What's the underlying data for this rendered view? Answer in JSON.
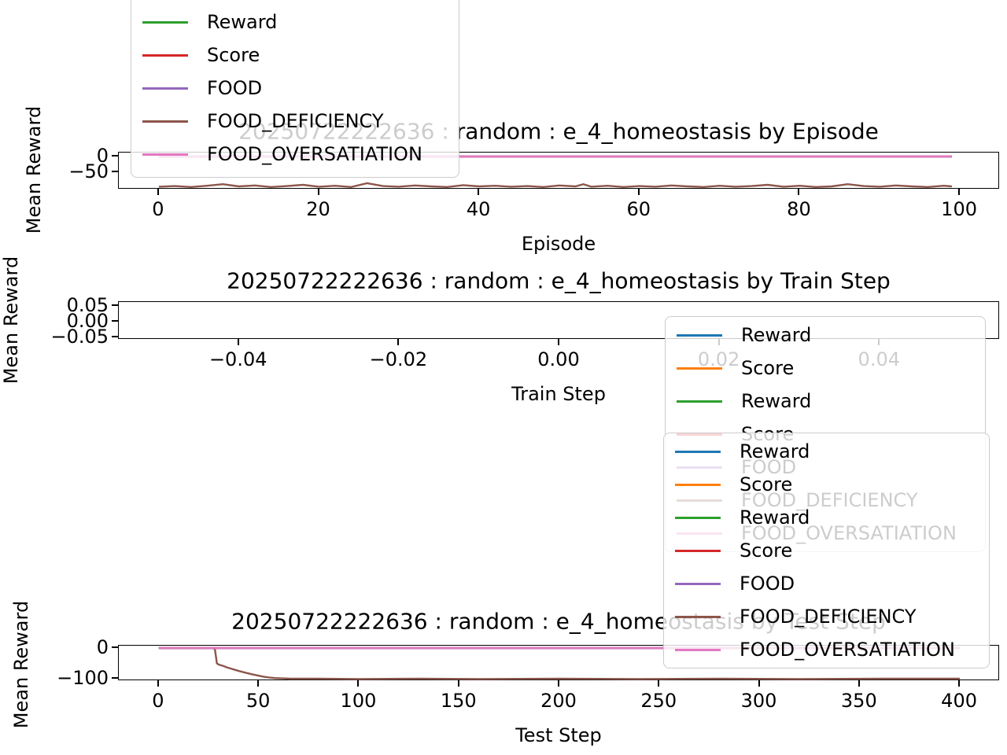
{
  "colors": {
    "blue": "#1f77b4",
    "orange": "#ff7f0e",
    "green": "#2ca02c",
    "red": "#d62728",
    "purple": "#9467bd",
    "brown": "#8c564b",
    "pink": "#e377c2"
  },
  "chart_data": [
    {
      "type": "line",
      "title": "20250722222636 : random : e_4_homeostasis by Episode",
      "xlabel": "Episode",
      "ylabel": "Mean Reward",
      "xlim": [
        -5,
        105
      ],
      "ylim": [
        -105,
        12.5
      ],
      "grid": false,
      "x_ticks": [
        {
          "v": 0,
          "label": "0"
        },
        {
          "v": 20,
          "label": "20"
        },
        {
          "v": 40,
          "label": "40"
        },
        {
          "v": 60,
          "label": "60"
        },
        {
          "v": 80,
          "label": "80"
        },
        {
          "v": 100,
          "label": "100"
        }
      ],
      "y_ticks": [
        {
          "v": 0,
          "label": "0"
        },
        {
          "v": -50,
          "label": "−50"
        }
      ],
      "legend": {
        "position": "upper-left",
        "entries": [
          {
            "label": "Reward",
            "color": "#2ca02c"
          },
          {
            "label": "Score",
            "color": "#d62728"
          },
          {
            "label": "FOOD",
            "color": "#9467bd"
          },
          {
            "label": "FOOD_DEFICIENCY",
            "color": "#8c564b"
          },
          {
            "label": "FOOD_OVERSATIATION",
            "color": "#e377c2"
          }
        ]
      },
      "series": [
        {
          "name": "Reward",
          "color": "#2ca02c",
          "points": [
            [
              0,
              0
            ],
            [
              99,
              0
            ]
          ]
        },
        {
          "name": "Score",
          "color": "#d62728",
          "points": [
            [
              0,
              0
            ],
            [
              99,
              0
            ]
          ]
        },
        {
          "name": "FOOD",
          "color": "#9467bd",
          "points": [
            [
              0,
              0
            ],
            [
              99,
              0
            ]
          ]
        },
        {
          "name": "FOOD_DEFICIENCY",
          "color": "#8c564b",
          "points": [
            [
              0,
              -96
            ],
            [
              2,
              -94
            ],
            [
              4,
              -97
            ],
            [
              6,
              -93
            ],
            [
              8,
              -88
            ],
            [
              10,
              -95
            ],
            [
              12,
              -92
            ],
            [
              14,
              -97
            ],
            [
              16,
              -94
            ],
            [
              18,
              -90
            ],
            [
              20,
              -96
            ],
            [
              22,
              -93
            ],
            [
              24,
              -97
            ],
            [
              26,
              -85
            ],
            [
              28,
              -94
            ],
            [
              30,
              -96
            ],
            [
              32,
              -92
            ],
            [
              34,
              -95
            ],
            [
              36,
              -97
            ],
            [
              38,
              -91
            ],
            [
              40,
              -95
            ],
            [
              42,
              -93
            ],
            [
              44,
              -96
            ],
            [
              46,
              -94
            ],
            [
              48,
              -97
            ],
            [
              50,
              -92
            ],
            [
              52,
              -95
            ],
            [
              53,
              -88
            ],
            [
              54,
              -96
            ],
            [
              56,
              -93
            ],
            [
              58,
              -97
            ],
            [
              60,
              -94
            ],
            [
              62,
              -96
            ],
            [
              64,
              -92
            ],
            [
              66,
              -95
            ],
            [
              68,
              -97
            ],
            [
              70,
              -93
            ],
            [
              72,
              -96
            ],
            [
              74,
              -94
            ],
            [
              76,
              -90
            ],
            [
              78,
              -96
            ],
            [
              80,
              -93
            ],
            [
              82,
              -97
            ],
            [
              84,
              -95
            ],
            [
              86,
              -88
            ],
            [
              88,
              -94
            ],
            [
              90,
              -96
            ],
            [
              92,
              -92
            ],
            [
              94,
              -95
            ],
            [
              96,
              -97
            ],
            [
              98,
              -93
            ],
            [
              99,
              -95
            ]
          ]
        },
        {
          "name": "FOOD_OVERSATIATION",
          "color": "#e377c2",
          "points": [
            [
              0,
              0
            ],
            [
              99,
              0
            ]
          ]
        }
      ]
    },
    {
      "type": "line",
      "title": "20250722222636 : random : e_4_homeostasis by Train Step",
      "xlabel": "Train Step",
      "ylabel": "Mean Reward",
      "xlim": [
        -0.055,
        0.055
      ],
      "ylim": [
        -0.0575,
        0.0625
      ],
      "grid": false,
      "x_ticks": [
        {
          "v": -0.04,
          "label": "−0.04"
        },
        {
          "v": -0.02,
          "label": "−0.02"
        },
        {
          "v": 0.0,
          "label": "0.00"
        },
        {
          "v": 0.02,
          "label": "0.02"
        },
        {
          "v": 0.04,
          "label": "0.04"
        }
      ],
      "y_ticks": [
        {
          "v": 0.05,
          "label": "0.05"
        },
        {
          "v": 0.0,
          "label": "0.00"
        },
        {
          "v": -0.05,
          "label": "−0.05"
        }
      ],
      "legend": {
        "position": "right",
        "entries": [
          {
            "label": "Reward",
            "color": "#1f77b4"
          },
          {
            "label": "Score",
            "color": "#ff7f0e"
          },
          {
            "label": "Reward",
            "color": "#2ca02c"
          },
          {
            "label": "Score",
            "color": "#d62728"
          },
          {
            "label": "FOOD",
            "color": "#9467bd"
          },
          {
            "label": "FOOD_DEFICIENCY",
            "color": "#8c564b"
          },
          {
            "label": "FOOD_OVERSATIATION",
            "color": "#e377c2"
          }
        ]
      },
      "series": []
    },
    {
      "type": "line",
      "title": "20250722222636 : random : e_4_homeostasis by Test Step",
      "xlabel": "Test Step",
      "ylabel": "Mean Reward",
      "xlim": [
        -20,
        420
      ],
      "ylim": [
        -107.7,
        7.7
      ],
      "grid": false,
      "x_ticks": [
        {
          "v": 0,
          "label": "0"
        },
        {
          "v": 50,
          "label": "50"
        },
        {
          "v": 100,
          "label": "100"
        },
        {
          "v": 150,
          "label": "150"
        },
        {
          "v": 200,
          "label": "200"
        },
        {
          "v": 250,
          "label": "250"
        },
        {
          "v": 300,
          "label": "300"
        },
        {
          "v": 350,
          "label": "350"
        },
        {
          "v": 400,
          "label": "400"
        }
      ],
      "y_ticks": [
        {
          "v": 0,
          "label": "0"
        },
        {
          "v": -100,
          "label": "−100"
        }
      ],
      "legend": {
        "position": "upper-right",
        "entries": [
          {
            "label": "Reward",
            "color": "#1f77b4"
          },
          {
            "label": "Score",
            "color": "#ff7f0e"
          },
          {
            "label": "Reward",
            "color": "#2ca02c"
          },
          {
            "label": "Score",
            "color": "#d62728"
          },
          {
            "label": "FOOD",
            "color": "#9467bd"
          },
          {
            "label": "FOOD_DEFICIENCY",
            "color": "#8c564b"
          },
          {
            "label": "FOOD_OVERSATIATION",
            "color": "#e377c2"
          }
        ]
      },
      "series": [
        {
          "name": "Reward",
          "color": "#1f77b4",
          "points": [
            [
              0,
              0
            ],
            [
              400,
              0
            ]
          ]
        },
        {
          "name": "Score",
          "color": "#ff7f0e",
          "points": [
            [
              0,
              0
            ],
            [
              400,
              0
            ]
          ]
        },
        {
          "name": "Reward",
          "color": "#2ca02c",
          "points": [
            [
              0,
              0
            ],
            [
              400,
              0
            ]
          ]
        },
        {
          "name": "Score",
          "color": "#d62728",
          "points": [
            [
              0,
              0
            ],
            [
              400,
              0
            ]
          ]
        },
        {
          "name": "FOOD",
          "color": "#9467bd",
          "points": [
            [
              0,
              0
            ],
            [
              400,
              0
            ]
          ]
        },
        {
          "name": "FOOD_DEFICIENCY",
          "color": "#8c564b",
          "points": [
            [
              0,
              0
            ],
            [
              27,
              0
            ],
            [
              28,
              -4
            ],
            [
              29,
              -50
            ],
            [
              30,
              -54
            ],
            [
              32,
              -58
            ],
            [
              34,
              -63
            ],
            [
              36,
              -67
            ],
            [
              38,
              -71
            ],
            [
              40,
              -75
            ],
            [
              43,
              -80
            ],
            [
              46,
              -85
            ],
            [
              49,
              -89
            ],
            [
              52,
              -93
            ],
            [
              55,
              -96
            ],
            [
              58,
              -98
            ],
            [
              62,
              -99
            ],
            [
              66,
              -100
            ],
            [
              80,
              -100
            ],
            [
              100,
              -101
            ],
            [
              130,
              -100
            ],
            [
              160,
              -101
            ],
            [
              200,
              -100
            ],
            [
              240,
              -101
            ],
            [
              280,
              -100
            ],
            [
              320,
              -101
            ],
            [
              360,
              -100
            ],
            [
              400,
              -100
            ]
          ]
        },
        {
          "name": "FOOD_OVERSATIATION",
          "color": "#e377c2",
          "points": [
            [
              0,
              0
            ],
            [
              400,
              0
            ]
          ]
        }
      ]
    }
  ]
}
